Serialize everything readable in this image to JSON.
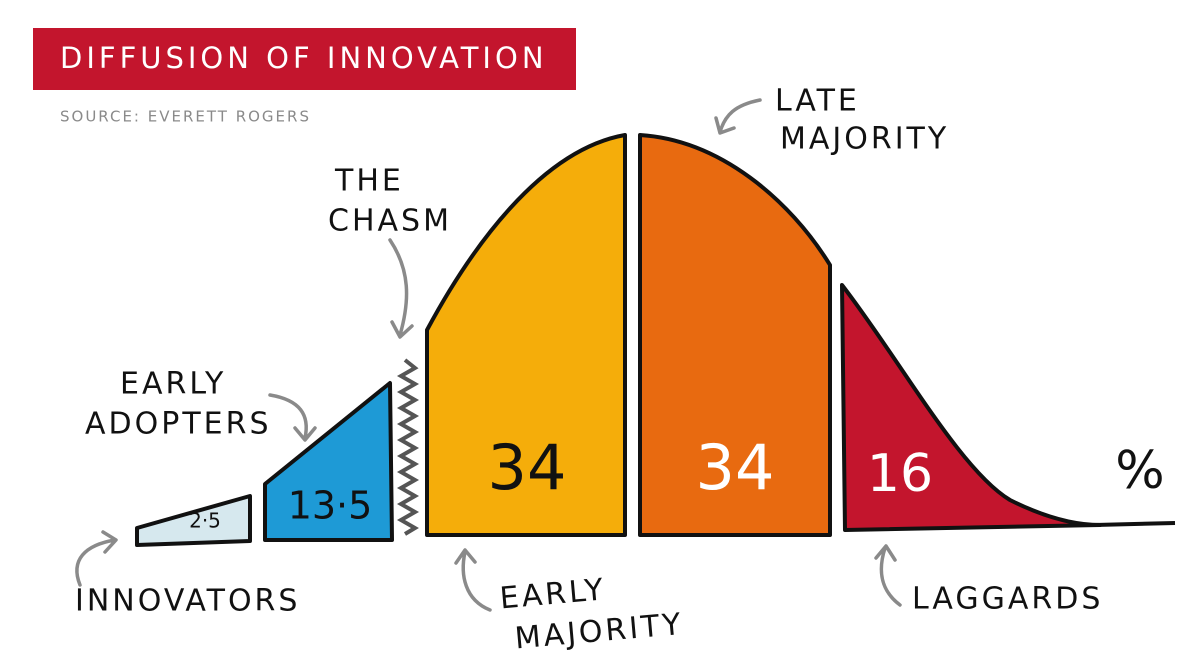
{
  "header": {
    "title": "DIFFUSION OF INNOVATION",
    "source": "SOURCE: EVERETT ROGERS"
  },
  "segments": [
    {
      "label": [
        "INNOVATORS"
      ],
      "value": "2·5"
    },
    {
      "label": [
        "EARLY",
        "ADOPTERS"
      ],
      "value": "13·5"
    },
    {
      "label": [
        "EARLY",
        "MAJORITY"
      ],
      "value": "34"
    },
    {
      "label": [
        "LATE",
        "MAJORITY"
      ],
      "value": "34"
    },
    {
      "label": [
        "LAGGARDS"
      ],
      "value": "16"
    }
  ],
  "chasm": {
    "label": [
      "THE",
      "CHASM"
    ]
  },
  "unit": "%"
}
